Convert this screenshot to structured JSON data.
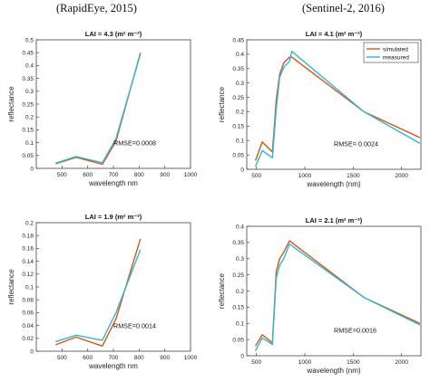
{
  "headers": {
    "left": "(RapidEye, 2015)",
    "right": "(Sentinel-2, 2016)"
  },
  "colors": {
    "simulated": "#d95319",
    "measured": "#2eb8d6"
  },
  "chart_data": [
    {
      "type": "line",
      "title": "LAI = 4.3 (m² m⁻²)",
      "xlabel": "wavelength  nm",
      "ylabel": "reflectance",
      "xlim": [
        400,
        1000
      ],
      "ylim": [
        0,
        0.5
      ],
      "xticks": [
        500,
        600,
        700,
        800,
        900,
        1000
      ],
      "yticks": [
        0,
        0.05,
        0.1,
        0.15,
        0.2,
        0.25,
        0.3,
        0.35,
        0.4,
        0.45,
        0.5
      ],
      "annotation": "RMSE=0.0008",
      "legend": null,
      "series": [
        {
          "key": "simulated",
          "x": [
            475,
            555,
            657,
            710,
            805
          ],
          "y": [
            0.018,
            0.043,
            0.016,
            0.105,
            0.45
          ]
        },
        {
          "key": "measured",
          "x": [
            475,
            555,
            657,
            710,
            805
          ],
          "y": [
            0.02,
            0.046,
            0.022,
            0.115,
            0.445
          ]
        }
      ]
    },
    {
      "type": "line",
      "title": "LAI = 4.1 (m² m⁻²)",
      "xlabel": "wavelength (nm)",
      "ylabel": "reflectance",
      "xlim": [
        400,
        2200
      ],
      "ylim": [
        0,
        0.45
      ],
      "xticks": [
        500,
        1000,
        1500,
        2000
      ],
      "yticks": [
        0,
        0.05,
        0.1,
        0.15,
        0.2,
        0.25,
        0.3,
        0.35,
        0.4,
        0.45
      ],
      "annotation": "RMSE= 0.0024",
      "legend": {
        "position": "top-right",
        "labels": [
          "simulated",
          "measured"
        ]
      },
      "series": [
        {
          "key": "simulated",
          "x": [
            490,
            560,
            665,
            705,
            740,
            783,
            842,
            865,
            1610,
            2190
          ],
          "y": [
            0.03,
            0.095,
            0.06,
            0.24,
            0.33,
            0.37,
            0.39,
            0.39,
            0.2,
            0.11
          ]
        },
        {
          "key": "measured",
          "x": [
            490,
            560,
            665,
            705,
            740,
            783,
            842,
            865,
            1610,
            2190
          ],
          "y": [
            0.01,
            0.065,
            0.04,
            0.21,
            0.32,
            0.355,
            0.375,
            0.41,
            0.2,
            0.09
          ]
        }
      ]
    },
    {
      "type": "line",
      "title": "LAI = 1.9 (m² m⁻²)",
      "xlabel": "wavelength  nm",
      "ylabel": "reflectance",
      "xlim": [
        400,
        1000
      ],
      "ylim": [
        0,
        0.2
      ],
      "xticks": [
        500,
        600,
        700,
        800,
        900,
        1000
      ],
      "yticks": [
        0,
        0.02,
        0.04,
        0.06,
        0.08,
        0.1,
        0.12,
        0.14,
        0.16,
        0.18,
        0.2
      ],
      "annotation": "RMSE=0.0014",
      "legend": null,
      "series": [
        {
          "key": "simulated",
          "x": [
            475,
            555,
            657,
            710,
            805
          ],
          "y": [
            0.01,
            0.022,
            0.008,
            0.05,
            0.175
          ]
        },
        {
          "key": "measured",
          "x": [
            475,
            555,
            657,
            710,
            805
          ],
          "y": [
            0.015,
            0.025,
            0.017,
            0.06,
            0.158
          ]
        }
      ]
    },
    {
      "type": "line",
      "title": "LAI = 2.1 (m² m⁻²)",
      "xlabel": "wavelength (nm)",
      "ylabel": "reflectance",
      "xlim": [
        400,
        2200
      ],
      "ylim": [
        0,
        0.4
      ],
      "xticks": [
        500,
        1000,
        1500,
        2000
      ],
      "yticks": [
        0,
        0.05,
        0.1,
        0.15,
        0.2,
        0.25,
        0.3,
        0.35,
        0.4
      ],
      "annotation": "RMSE=0.0016",
      "legend": null,
      "series": [
        {
          "key": "simulated",
          "x": [
            490,
            560,
            665,
            705,
            740,
            783,
            842,
            865,
            1610,
            2190
          ],
          "y": [
            0.03,
            0.065,
            0.04,
            0.26,
            0.3,
            0.32,
            0.355,
            0.35,
            0.18,
            0.1
          ]
        },
        {
          "key": "measured",
          "x": [
            490,
            560,
            665,
            705,
            740,
            783,
            842,
            865,
            1610,
            2190
          ],
          "y": [
            0.015,
            0.055,
            0.035,
            0.24,
            0.28,
            0.3,
            0.345,
            0.34,
            0.18,
            0.095
          ]
        }
      ]
    }
  ]
}
